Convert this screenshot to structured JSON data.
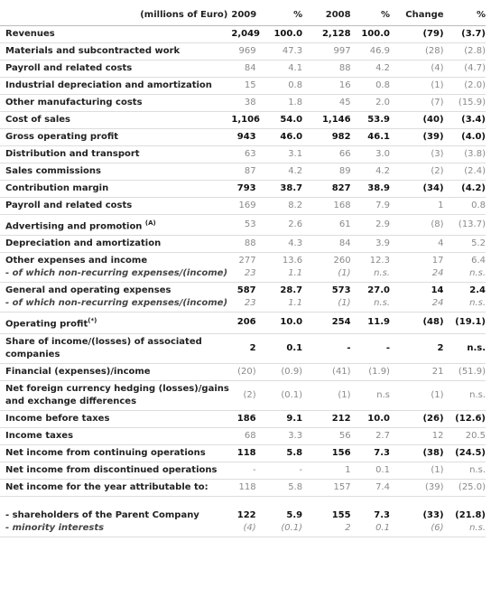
{
  "table": {
    "header": [
      "(millions of Euro)",
      "2009",
      "%",
      "2008",
      "%",
      "Change",
      "%"
    ],
    "rows": [
      {
        "label": "Revenues",
        "bold": true,
        "values": [
          "2,049",
          "100.0",
          "2,128",
          "100.0",
          "(79)",
          "(3.7)"
        ]
      },
      {
        "label": "Materials and subcontracted work",
        "values": [
          "969",
          "47.3",
          "997",
          "46.9",
          "(28)",
          "(2.8)"
        ]
      },
      {
        "label": "Payroll and related costs",
        "values": [
          "84",
          "4.1",
          "88",
          "4.2",
          "(4)",
          "(4.7)"
        ]
      },
      {
        "label": "Industrial depreciation and amortization",
        "values": [
          "15",
          "0.8",
          "16",
          "0.8",
          "(1)",
          "(2.0)"
        ]
      },
      {
        "label": "Other manufacturing costs",
        "values": [
          "38",
          "1.8",
          "45",
          "2.0",
          "(7)",
          "(15.9)"
        ]
      },
      {
        "label": "Cost of sales",
        "bold": true,
        "values": [
          "1,106",
          "54.0",
          "1,146",
          "53.9",
          "(40)",
          "(3.4)"
        ]
      },
      {
        "label": "Gross operating profit",
        "bold": true,
        "values": [
          "943",
          "46.0",
          "982",
          "46.1",
          "(39)",
          "(4.0)"
        ]
      },
      {
        "label": "Distribution and transport",
        "values": [
          "63",
          "3.1",
          "66",
          "3.0",
          "(3)",
          "(3.8)"
        ]
      },
      {
        "label": "Sales commissions",
        "values": [
          "87",
          "4.2",
          "89",
          "4.2",
          "(2)",
          "(2.4)"
        ]
      },
      {
        "label": "Contribution margin",
        "bold": true,
        "values": [
          "793",
          "38.7",
          "827",
          "38.9",
          "(34)",
          "(4.2)"
        ]
      },
      {
        "label": "Payroll and related costs",
        "values": [
          "169",
          "8.2",
          "168",
          "7.9",
          "1",
          "0.8"
        ]
      },
      {
        "label": "Advertising and promotion ",
        "sup": "(A)",
        "values": [
          "53",
          "2.6",
          "61",
          "2.9",
          "(8)",
          "(13.7)"
        ]
      },
      {
        "label": "Depreciation and amortization",
        "values": [
          "88",
          "4.3",
          "84",
          "3.9",
          "4",
          "5.2"
        ]
      },
      {
        "label": "Other expenses and income",
        "values": [
          "277",
          "13.6",
          "260",
          "12.3",
          "17",
          "6.4"
        ],
        "sub": {
          "label": "- of which non-recurring expenses/(income)",
          "values": [
            "23",
            "1.1",
            "(1)",
            "n.s.",
            "24",
            "n.s."
          ]
        }
      },
      {
        "label": "General and operating expenses",
        "bold": true,
        "values": [
          "587",
          "28.7",
          "573",
          "27.0",
          "14",
          "2.4"
        ],
        "sub": {
          "label": "- of which non-recurring expenses/(income)",
          "values": [
            "23",
            "1.1",
            "(1)",
            "n.s.",
            "24",
            "n.s."
          ]
        }
      },
      {
        "label": "Operating profit",
        "sup": "(*)",
        "bold": true,
        "values": [
          "206",
          "10.0",
          "254",
          "11.9",
          "(48)",
          "(19.1)"
        ]
      },
      {
        "label": "Share of income/(losses) of associated companies",
        "bold": true,
        "values": [
          "2",
          "0.1",
          "-",
          "-",
          "2",
          "n.s."
        ]
      },
      {
        "label": "Financial (expenses)/income",
        "values": [
          "(20)",
          "(0.9)",
          "(41)",
          "(1.9)",
          "21",
          "(51.9)"
        ]
      },
      {
        "label": "Net foreign currency hedging (losses)/gains and exchange differences",
        "values": [
          "(2)",
          "(0.1)",
          "(1)",
          "n.s",
          "(1)",
          "n.s."
        ]
      },
      {
        "label": "Income before taxes",
        "bold": true,
        "values": [
          "186",
          "9.1",
          "212",
          "10.0",
          "(26)",
          "(12.6)"
        ]
      },
      {
        "label": "Income taxes",
        "values": [
          "68",
          "3.3",
          "56",
          "2.7",
          "12",
          "20.5"
        ]
      },
      {
        "label": "Net income from continuing operations",
        "bold": true,
        "values": [
          "118",
          "5.8",
          "156",
          "7.3",
          "(38)",
          "(24.5)"
        ]
      },
      {
        "label": "Net income from discontinued operations",
        "values": [
          "-",
          "-",
          "1",
          "0.1",
          "(1)",
          "n.s."
        ]
      },
      {
        "label": "Net income for the year attributable to:",
        "values": [
          "118",
          "5.8",
          "157",
          "7.4",
          "(39)",
          "(25.0)"
        ]
      },
      {
        "label": "- shareholders of the Parent Company",
        "bold": true,
        "values": [
          "122",
          "5.9",
          "155",
          "7.3",
          "(33)",
          "(21.8)"
        ],
        "sub": {
          "label": "- minority interests",
          "values": [
            "(4)",
            "(0.1)",
            "2",
            "0.1",
            "(6)",
            "n.s."
          ]
        }
      }
    ]
  }
}
